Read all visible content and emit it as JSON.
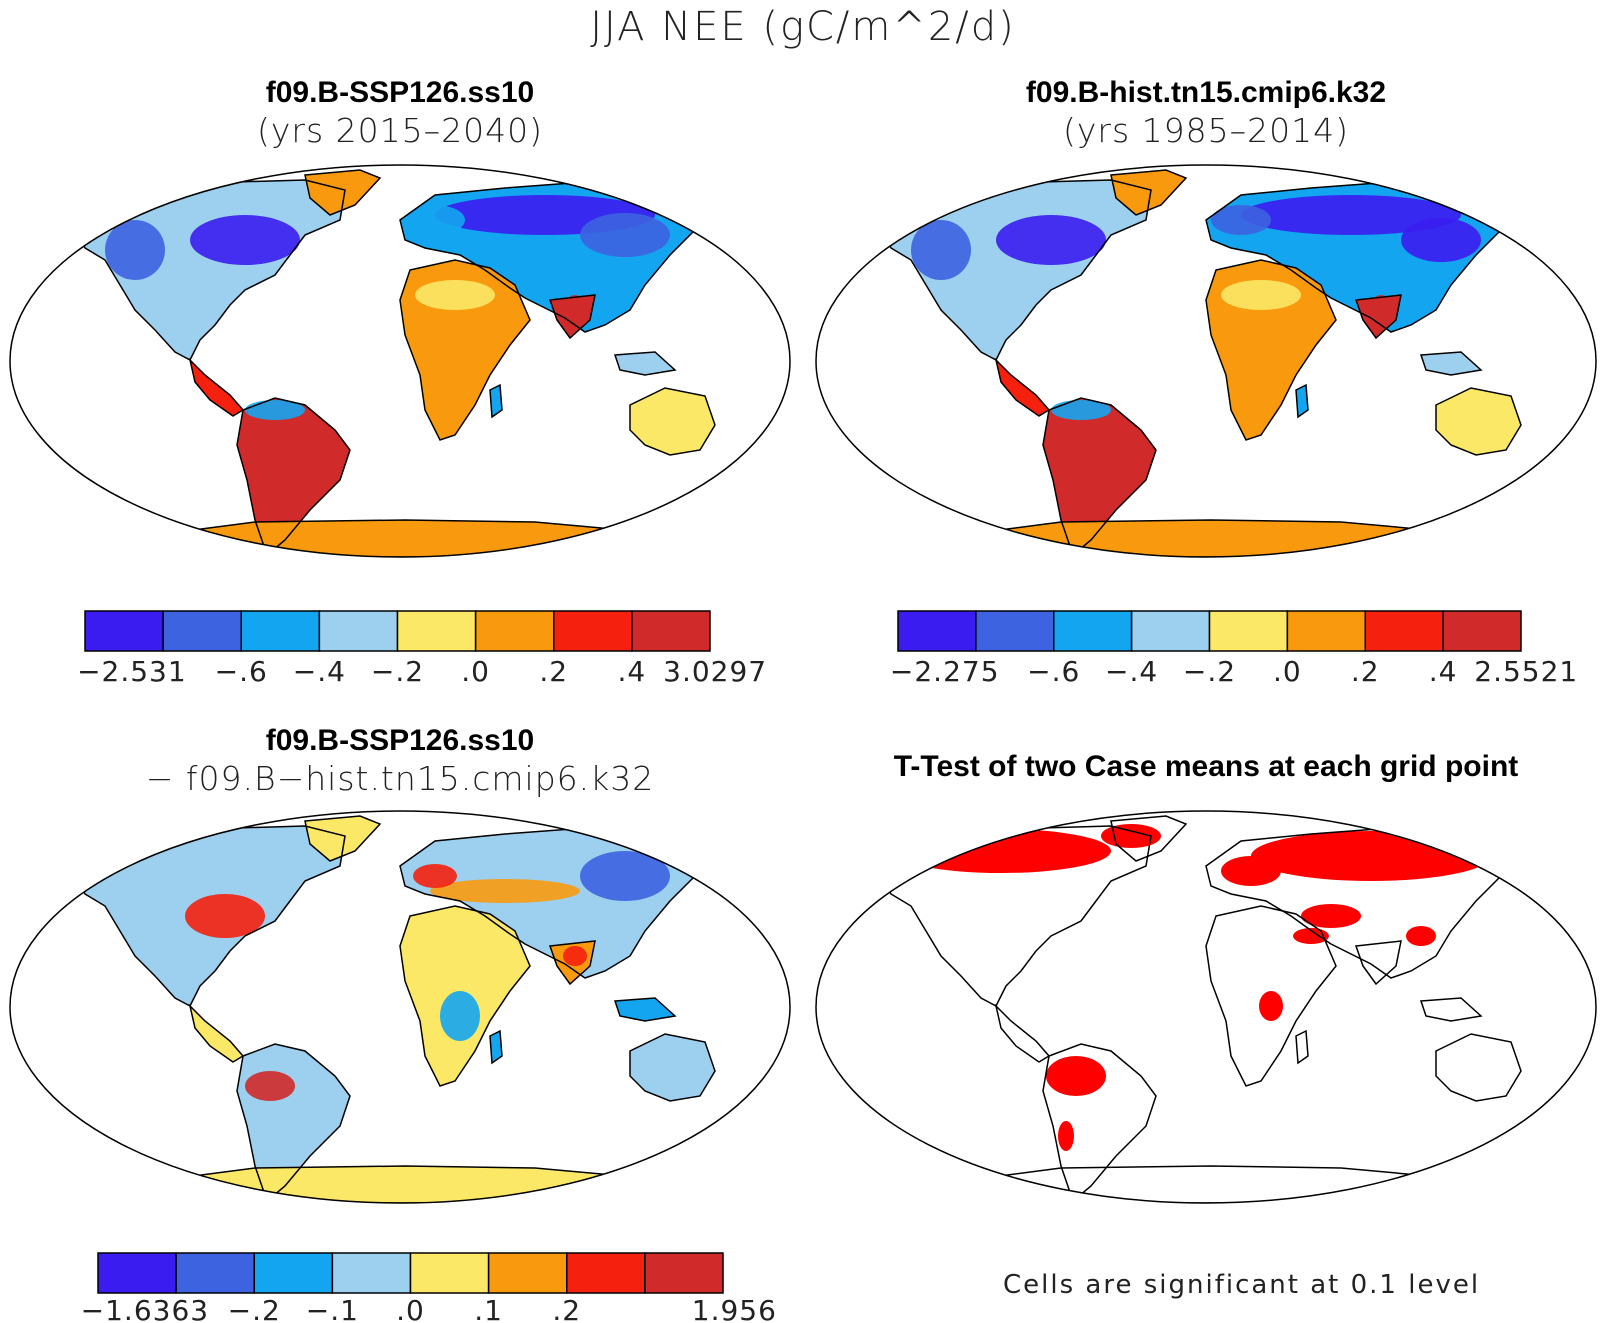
{
  "title": "JJA NEE (gC/m^2/d)",
  "panels": [
    {
      "title_line1": "f09.B-SSP126.ss10",
      "title_line2": "(yrs 2015–2040)",
      "colorbar": {
        "colors": [
          "#3b1cf0",
          "#3d63e0",
          "#14a5f0",
          "#9dcfee",
          "#fbe866",
          "#f99a0e",
          "#f5200e",
          "#d02a2a"
        ],
        "labels": [
          "−2.531",
          "−.6",
          "−.4",
          "−.2",
          ".0",
          ".2",
          ".4",
          "3.0297"
        ]
      }
    },
    {
      "title_line1": "f09.B-hist.tn15.cmip6.k32",
      "title_line2": "(yrs 1985–2014)",
      "colorbar": {
        "colors": [
          "#3b1cf0",
          "#3d63e0",
          "#14a5f0",
          "#9dcfee",
          "#fbe866",
          "#f99a0e",
          "#f5200e",
          "#d02a2a"
        ],
        "labels": [
          "−2.275",
          "−.6",
          "−.4",
          "−.2",
          ".0",
          ".2",
          ".4",
          "2.5521"
        ]
      }
    },
    {
      "title_line1": "f09.B-SSP126.ss10",
      "title_line2": "− f09.B−hist.tn15.cmip6.k32",
      "colorbar": {
        "colors": [
          "#3b1cf0",
          "#3d63e0",
          "#14a5f0",
          "#9dcfee",
          "#fbe866",
          "#f99a0e",
          "#f5200e",
          "#d02a2a"
        ],
        "labels": [
          "−1.6363",
          "−.2",
          "−.1",
          ".0",
          ".1",
          ".2",
          "1.956"
        ]
      }
    },
    {
      "title_line1": "T-Test of two Case means at each grid point",
      "note": "Cells are significant at 0.1 level",
      "significant_color": "#ff0000"
    }
  ]
}
